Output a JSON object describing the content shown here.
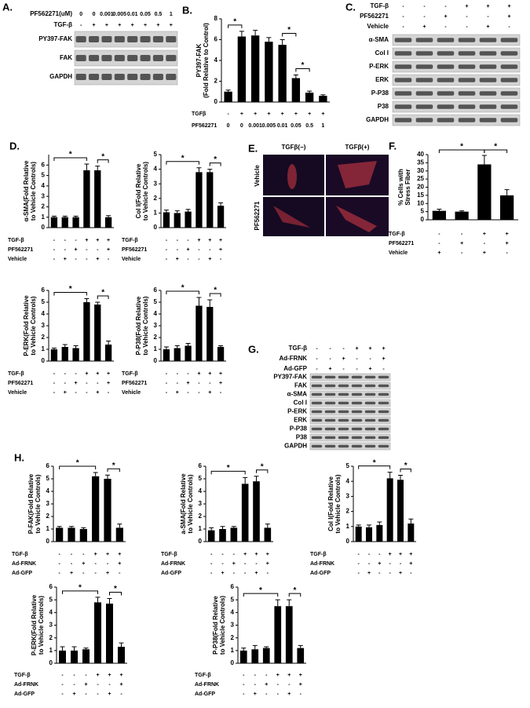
{
  "chart_data": [
    {
      "type": "bar",
      "panel": "B.",
      "ylabel": [
        "PY397-FAK",
        "(Fold Relative to Control)"
      ],
      "values": [
        1,
        6.3,
        6.4,
        5.8,
        5.5,
        2.3,
        0.9,
        0.6
      ],
      "errors": [
        0.15,
        0.5,
        0.5,
        0.4,
        0.5,
        0.3,
        0.15,
        0.1
      ],
      "color": "#000000",
      "ylim": [
        0,
        8
      ],
      "yticks": [
        0,
        2,
        4,
        6,
        8
      ],
      "conditions": [
        {
          "label": "TGFβ",
          "values": [
            "-",
            "+",
            "+",
            "+",
            "+",
            "+",
            "+",
            "+"
          ]
        },
        {
          "label": "PF562271",
          "values": [
            "0",
            "0",
            "0.001",
            "0.005",
            "0.01",
            "0.05",
            "0.5",
            "1"
          ]
        }
      ],
      "brackets": [
        {
          "between": [
            0,
            1
          ],
          "label": "*"
        },
        {
          "between": [
            4,
            5
          ],
          "label": "*"
        },
        {
          "between": [
            5,
            6
          ],
          "label": "*"
        }
      ]
    },
    {
      "type": "bar",
      "panel": "D.",
      "ylabel": [
        "α-SMA(Fold Relative",
        "to Vehicle Controls)"
      ],
      "values": [
        1,
        1,
        1,
        5.5,
        5.5,
        1
      ],
      "errors": [
        0.1,
        0.1,
        0.1,
        0.6,
        0.4,
        0.15
      ],
      "color": "#000000",
      "ylim": [
        0,
        7
      ],
      "yticks": [
        0,
        1,
        2,
        3,
        4,
        5,
        6
      ],
      "conditions": [
        {
          "label": "TGF-β",
          "values": [
            "-",
            "-",
            "-",
            "+",
            "+",
            "+"
          ]
        },
        {
          "label": "PF562271",
          "values": [
            "-",
            "-",
            "+",
            "-",
            "-",
            "+"
          ]
        },
        {
          "label": "Vehicle",
          "values": [
            "-",
            "+",
            "-",
            "-",
            "+",
            "-"
          ]
        }
      ],
      "brackets": [
        {
          "between": [
            0,
            3
          ],
          "label": "*"
        },
        {
          "between": [
            4,
            5
          ],
          "label": "*"
        }
      ]
    },
    {
      "type": "bar",
      "ylabel": [
        "Col I(Fold Relative",
        "to Vehicle Controls)"
      ],
      "values": [
        1.05,
        1,
        1.1,
        3.8,
        3.8,
        1.5
      ],
      "errors": [
        0.15,
        0.15,
        0.15,
        0.3,
        0.2,
        0.2
      ],
      "color": "#000000",
      "ylim": [
        0,
        5
      ],
      "yticks": [
        0,
        1,
        2,
        3,
        4,
        5
      ],
      "conditions": [
        {
          "label": "TGF-β",
          "values": [
            "-",
            "-",
            "-",
            "+",
            "+",
            "+"
          ]
        },
        {
          "label": "PF562271",
          "values": [
            "-",
            "-",
            "+",
            "-",
            "-",
            "+"
          ]
        },
        {
          "label": "Vehicle",
          "values": [
            "-",
            "+",
            "-",
            "-",
            "+",
            "-"
          ]
        }
      ],
      "brackets": [
        {
          "between": [
            0,
            3
          ],
          "label": "*"
        },
        {
          "between": [
            4,
            5
          ],
          "label": "*"
        }
      ]
    },
    {
      "type": "bar",
      "ylabel": [
        "P-ERK(Fold Relative",
        "to Vehicle Controls)"
      ],
      "values": [
        1,
        1.2,
        1.1,
        5,
        4.8,
        1.4
      ],
      "errors": [
        0.1,
        0.2,
        0.2,
        0.3,
        0.2,
        0.3
      ],
      "color": "#000000",
      "ylim": [
        0,
        6
      ],
      "yticks": [
        0,
        1,
        2,
        3,
        4,
        5,
        6
      ],
      "conditions": [
        {
          "label": "TGF-β",
          "values": [
            "-",
            "-",
            "-",
            "+",
            "+",
            "+"
          ]
        },
        {
          "label": "PF562271",
          "values": [
            "-",
            "-",
            "+",
            "-",
            "-",
            "+"
          ]
        },
        {
          "label": "Vehicle",
          "values": [
            "-",
            "+",
            "-",
            "-",
            "+",
            "-"
          ]
        }
      ],
      "brackets": [
        {
          "between": [
            0,
            3
          ],
          "label": "*"
        },
        {
          "between": [
            4,
            5
          ],
          "label": "*"
        }
      ]
    },
    {
      "type": "bar",
      "ylabel": [
        "P-P38(Fold Relative",
        "to Vehicle Controls)"
      ],
      "values": [
        1,
        1.1,
        1.3,
        4.7,
        4.6,
        1.2
      ],
      "errors": [
        0.2,
        0.2,
        0.2,
        0.7,
        0.6,
        0.1
      ],
      "color": "#000000",
      "ylim": [
        0,
        6
      ],
      "yticks": [
        0,
        1,
        2,
        3,
        4,
        5,
        6
      ],
      "conditions": [
        {
          "label": "TGF-β",
          "values": [
            "-",
            "-",
            "-",
            "+",
            "+",
            "+"
          ]
        },
        {
          "label": "PF562271",
          "values": [
            "-",
            "-",
            "+",
            "-",
            "-",
            "+"
          ]
        },
        {
          "label": "Vehicle",
          "values": [
            "-",
            "+",
            "-",
            "-",
            "+",
            "-"
          ]
        }
      ],
      "brackets": [
        {
          "between": [
            0,
            3
          ],
          "label": "*"
        },
        {
          "between": [
            4,
            5
          ],
          "label": "*"
        }
      ]
    },
    {
      "type": "bar",
      "panel": "F.",
      "ylabel": [
        "% Cells with",
        "Stress Fiber"
      ],
      "values": [
        5.5,
        5,
        34,
        15
      ],
      "errors": [
        1,
        0.5,
        5.5,
        3.5
      ],
      "color": "#000000",
      "ylim": [
        0,
        40
      ],
      "yticks": [
        0,
        5,
        10,
        15,
        20,
        25,
        30,
        35,
        40
      ],
      "conditions": [
        {
          "label": "TGF-β",
          "values": [
            "-",
            "-",
            "+",
            "+"
          ]
        },
        {
          "label": "PF562271",
          "values": [
            "-",
            "+",
            "-",
            "+"
          ]
        },
        {
          "label": "Vehicle",
          "values": [
            "+",
            "-",
            "+",
            "-"
          ]
        }
      ],
      "brackets": [
        {
          "between": [
            0,
            2
          ],
          "label": "*"
        },
        {
          "between": [
            2,
            3
          ],
          "label": "*"
        }
      ]
    },
    {
      "type": "bar",
      "panel": "H.",
      "ylabel": [
        "P-FAK(Fold Relative",
        "to Vehicle Controls)"
      ],
      "values": [
        1.1,
        1.1,
        1,
        5.2,
        5,
        1.1
      ],
      "errors": [
        0.1,
        0.1,
        0.1,
        0.3,
        0.3,
        0.3
      ],
      "color": "#000000",
      "ylim": [
        0,
        6
      ],
      "yticks": [
        0,
        1,
        2,
        3,
        4,
        5,
        6
      ],
      "conditions": [
        {
          "label": "TGF-β",
          "values": [
            "-",
            "-",
            "-",
            "+",
            "+",
            "+"
          ]
        },
        {
          "label": "Ad-FRNK",
          "values": [
            "-",
            "-",
            "+",
            "-",
            "-",
            "+"
          ]
        },
        {
          "label": "Ad-GFP",
          "values": [
            "-",
            "+",
            "-",
            "-",
            "+",
            "-"
          ]
        }
      ],
      "brackets": [
        {
          "between": [
            0,
            3
          ],
          "label": "*"
        },
        {
          "between": [
            4,
            5
          ],
          "label": "*"
        }
      ]
    },
    {
      "type": "bar",
      "ylabel": [
        "a-SMA(Fold Relative",
        "to Vehicle Controls)"
      ],
      "values": [
        0.9,
        1,
        1.1,
        4.6,
        4.8,
        1.1
      ],
      "errors": [
        0.2,
        0.2,
        0.1,
        0.5,
        0.4,
        0.3
      ],
      "color": "#000000",
      "ylim": [
        0,
        6
      ],
      "yticks": [
        0,
        1,
        2,
        3,
        4,
        5,
        6
      ],
      "conditions": [
        {
          "label": "TGF-β",
          "values": [
            "-",
            "-",
            "-",
            "+",
            "+",
            "+"
          ]
        },
        {
          "label": "Ad-FRNK",
          "values": [
            "-",
            "-",
            "+",
            "-",
            "-",
            "+"
          ]
        },
        {
          "label": "Ad-GFP",
          "values": [
            "-",
            "+",
            "-",
            "-",
            "+",
            "-"
          ]
        }
      ],
      "brackets": [
        {
          "between": [
            0,
            3
          ],
          "label": "*"
        },
        {
          "between": [
            4,
            5
          ],
          "label": "*"
        }
      ]
    },
    {
      "type": "bar",
      "ylabel": [
        "Col I(Fold Relative",
        "to Vehicle Controls)"
      ],
      "values": [
        1,
        0.95,
        1.1,
        4.2,
        4.1,
        1.2
      ],
      "errors": [
        0.1,
        0.15,
        0.2,
        0.4,
        0.3,
        0.3
      ],
      "color": "#000000",
      "ylim": [
        0,
        5
      ],
      "yticks": [
        0,
        1,
        2,
        3,
        4,
        5
      ],
      "conditions": [
        {
          "label": "TGF-β",
          "values": [
            "-",
            "-",
            "-",
            "+",
            "+",
            "+"
          ]
        },
        {
          "label": "Ad-FRNK",
          "values": [
            "-",
            "-",
            "+",
            "-",
            "-",
            "+"
          ]
        },
        {
          "label": "Ad-GFP",
          "values": [
            "-",
            "+",
            "-",
            "-",
            "+",
            "-"
          ]
        }
      ],
      "brackets": [
        {
          "between": [
            0,
            3
          ],
          "label": "*"
        },
        {
          "between": [
            4,
            5
          ],
          "label": "*"
        }
      ]
    },
    {
      "type": "bar",
      "ylabel": [
        "P-ERK(Fold Relative",
        "to Vehicle Controls)"
      ],
      "values": [
        1,
        1,
        1.1,
        4.8,
        4.7,
        1.3
      ],
      "errors": [
        0.3,
        0.3,
        0.1,
        0.4,
        0.4,
        0.3
      ],
      "color": "#000000",
      "ylim": [
        0,
        6
      ],
      "yticks": [
        0,
        1,
        2,
        3,
        4,
        5,
        6
      ],
      "conditions": [
        {
          "label": "TGF-β",
          "values": [
            "-",
            "-",
            "-",
            "+",
            "+",
            "+"
          ]
        },
        {
          "label": "Ad-FRNK",
          "values": [
            "-",
            "-",
            "+",
            "-",
            "-",
            "+"
          ]
        },
        {
          "label": "Ad-GFP",
          "values": [
            "-",
            "+",
            "-",
            "-",
            "+",
            "-"
          ]
        }
      ],
      "brackets": [
        {
          "between": [
            0,
            3
          ],
          "label": "*"
        },
        {
          "between": [
            4,
            5
          ],
          "label": "*"
        }
      ]
    },
    {
      "type": "bar",
      "ylabel": [
        "P-P38(Fold Relative",
        "to Vehicle Controls)"
      ],
      "values": [
        1,
        1.1,
        1.2,
        4.5,
        4.5,
        1.2
      ],
      "errors": [
        0.2,
        0.3,
        0.1,
        0.5,
        0.5,
        0.2
      ],
      "color": "#000000",
      "ylim": [
        0,
        6
      ],
      "yticks": [
        0,
        1,
        2,
        3,
        4,
        5,
        6
      ],
      "conditions": [
        {
          "label": "TGF-β",
          "values": [
            "-",
            "-",
            "-",
            "+",
            "+",
            "+"
          ]
        },
        {
          "label": "Ad-FRNK",
          "values": [
            "-",
            "-",
            "+",
            "-",
            "-",
            "+"
          ]
        },
        {
          "label": "Ad-GFP",
          "values": [
            "-",
            "+",
            "-",
            "-",
            "+",
            "-"
          ]
        }
      ],
      "brackets": [
        {
          "between": [
            0,
            3
          ],
          "label": "*"
        },
        {
          "between": [
            4,
            5
          ],
          "label": "*"
        }
      ]
    }
  ],
  "blots": [
    {
      "panel": "A.",
      "header": [
        {
          "label": "PF562271(uM)",
          "values": [
            "0",
            "0",
            "0.001",
            "0.005",
            "0.01",
            "0.05",
            "0.5",
            "1"
          ]
        },
        {
          "label": "TGF-β",
          "values": [
            "-",
            "+",
            "+",
            "+",
            "+",
            "+",
            "+",
            "+"
          ]
        }
      ],
      "bands": [
        "PY397-FAK",
        "FAK",
        "GAPDH"
      ]
    },
    {
      "panel": "C.",
      "header": [
        {
          "label": "TGF-β",
          "values": [
            "-",
            "-",
            "-",
            "+",
            "+",
            "+"
          ]
        },
        {
          "label": "PF562271",
          "values": [
            "-",
            "-",
            "+",
            "-",
            "-",
            "+"
          ]
        },
        {
          "label": "Vehicle",
          "values": [
            "-",
            "+",
            "-",
            "-",
            "+",
            "-"
          ]
        }
      ],
      "bands": [
        "α-SMA",
        "Col I",
        "P-ERK",
        "ERK",
        "P-P38",
        "P38",
        "GAPDH"
      ]
    },
    {
      "panel": "G.",
      "header": [
        {
          "label": "TGF-β",
          "values": [
            "-",
            "-",
            "-",
            "+",
            "+",
            "+"
          ]
        },
        {
          "label": "Ad-FRNK",
          "values": [
            "-",
            "-",
            "+",
            "-",
            "-",
            "+"
          ]
        },
        {
          "label": "Ad-GFP",
          "values": [
            "-",
            "+",
            "-",
            "-",
            "+",
            "-"
          ]
        }
      ],
      "bands": [
        "PY397-FAK",
        "FAK",
        "α-SMA",
        "Col I",
        "P-ERK",
        "ERK",
        "P-P38",
        "P38",
        "GAPDH"
      ]
    }
  ],
  "images": {
    "panel": "E.",
    "columns": [
      "TGFβ(−)",
      "TGFβ(+)"
    ],
    "rows": [
      "Vehicle",
      "PF562271"
    ]
  }
}
